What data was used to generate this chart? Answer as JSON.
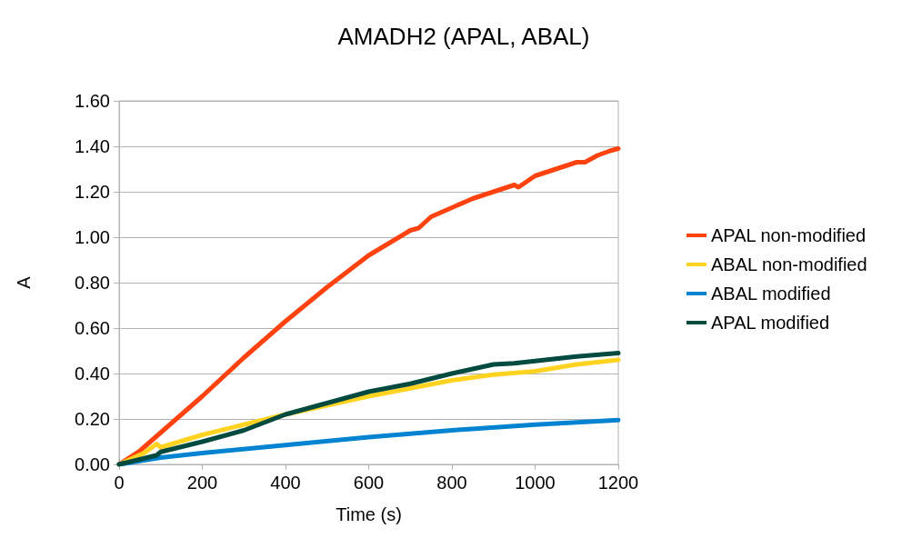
{
  "chart_data": {
    "type": "line",
    "title": "AMADH2 (APAL, ABAL)",
    "xlabel": "Time (s)",
    "ylabel": "A",
    "xlim": [
      0,
      1200
    ],
    "xticks": [
      0,
      200,
      400,
      600,
      800,
      1000,
      1200
    ],
    "ylim": [
      0,
      1.6
    ],
    "yticks": [
      {
        "value": 0,
        "label": "0.00"
      },
      {
        "value": 0.2,
        "label": "0.20"
      },
      {
        "value": 0.4,
        "label": "0.40"
      },
      {
        "value": 0.6,
        "label": "0.60"
      },
      {
        "value": 0.8,
        "label": "0.80"
      },
      {
        "value": 1.0,
        "label": "1.00"
      },
      {
        "value": 1.2,
        "label": "1.20"
      },
      {
        "value": 1.4,
        "label": "1.40"
      },
      {
        "value": 1.6,
        "label": "1.60"
      }
    ],
    "grid": "y",
    "legend": "right",
    "marker": "none",
    "line_style": "solid",
    "series": [
      {
        "name": "APAL non-modified",
        "color": "#ff420e",
        "x": [
          0,
          50,
          100,
          200,
          300,
          400,
          500,
          600,
          700,
          720,
          750,
          800,
          850,
          900,
          950,
          960,
          1000,
          1050,
          1100,
          1120,
          1150,
          1180,
          1200
        ],
        "values": [
          0,
          0.06,
          0.14,
          0.3,
          0.47,
          0.63,
          0.78,
          0.92,
          1.03,
          1.04,
          1.09,
          1.13,
          1.17,
          1.2,
          1.23,
          1.22,
          1.27,
          1.3,
          1.33,
          1.33,
          1.36,
          1.38,
          1.39
        ]
      },
      {
        "name": "ABAL non-modified",
        "color": "#ffd320",
        "x": [
          0,
          60,
          90,
          100,
          200,
          300,
          400,
          500,
          600,
          700,
          800,
          900,
          1000,
          1100,
          1200
        ],
        "values": [
          0,
          0.05,
          0.09,
          0.075,
          0.13,
          0.175,
          0.22,
          0.26,
          0.3,
          0.335,
          0.37,
          0.395,
          0.41,
          0.44,
          0.46
        ]
      },
      {
        "name": "ABAL modified",
        "color": "#0084d1",
        "x": [
          0,
          100,
          200,
          400,
          600,
          800,
          1000,
          1200
        ],
        "values": [
          0,
          0.03,
          0.05,
          0.085,
          0.12,
          0.15,
          0.175,
          0.195
        ]
      },
      {
        "name": "APAL modified",
        "color": "#004a40",
        "x": [
          0,
          90,
          100,
          200,
          300,
          400,
          500,
          600,
          700,
          800,
          900,
          950,
          1000,
          1100,
          1200
        ],
        "values": [
          0,
          0.04,
          0.055,
          0.1,
          0.15,
          0.22,
          0.27,
          0.32,
          0.355,
          0.4,
          0.44,
          0.445,
          0.455,
          0.475,
          0.49
        ]
      }
    ]
  }
}
